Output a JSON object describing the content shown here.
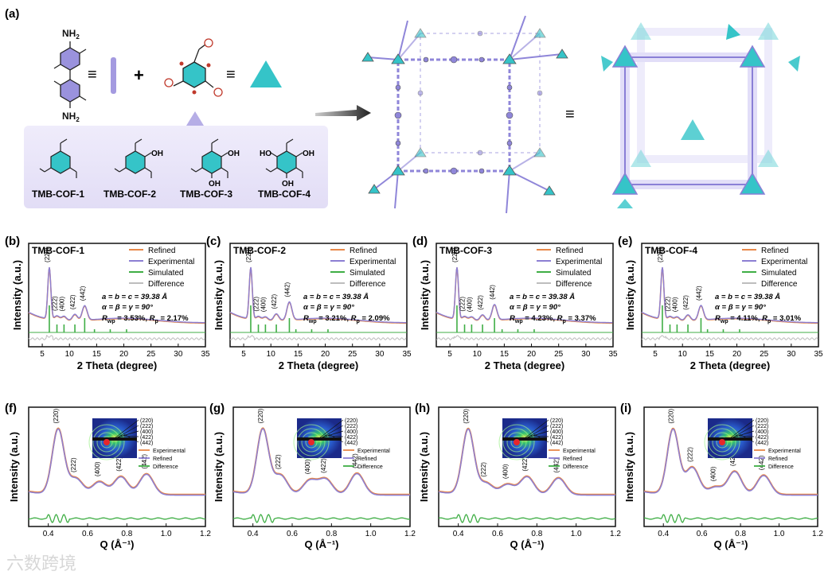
{
  "panel_a": {
    "tag": "(a)",
    "amine_top": "NH",
    "amine_bottom": "NH",
    "amine_sub": "2",
    "equiv_symbol": "≡",
    "plus_symbol": "+",
    "aldehydes": [
      {
        "name": "TMB-COF-1"
      },
      {
        "name": "TMB-COF-2",
        "oh": [
          "OH"
        ]
      },
      {
        "name": "TMB-COF-3",
        "oh": [
          "OH",
          "OH"
        ]
      },
      {
        "name": "TMB-COF-4",
        "oh": [
          "HO",
          "OH",
          "OH"
        ]
      }
    ],
    "colors": {
      "linker": "#a49ae0",
      "node": "#35c4c8",
      "box": "#e9e6f8",
      "frame": "#8a7fd6"
    }
  },
  "pxrd_common": {
    "xlabel": "2 Theta (degree)",
    "ylabel": "Intensity (a.u.)",
    "legend": [
      "Refined",
      "Experimental",
      "Simulated",
      "Difference"
    ],
    "legend_colors": [
      "#e8894a",
      "#8c7fd3",
      "#3fae45",
      "#bdbdbd"
    ],
    "xticks": [
      "5",
      "10",
      "15",
      "20",
      "25",
      "30",
      "35"
    ],
    "cell": "a = b = c = 39.38 Å",
    "angles": "α = β = γ = 90°",
    "rwp_label": "R",
    "rwp_sub": "wp",
    "rp_label": "R",
    "rp_sub": "p"
  },
  "pxrd_panels": [
    {
      "tag": "(b)",
      "title": "TMB-COF-1",
      "rwp": " = 3.53%, ",
      "rp": " = 2.17%"
    },
    {
      "tag": "(c)",
      "title": "TMB-COF-2",
      "rwp": " = 3.21%, ",
      "rp": " = 2.09%"
    },
    {
      "tag": "(d)",
      "title": "TMB-COF-3",
      "rwp": " = 4.23%, ",
      "rp": " = 3.37%"
    },
    {
      "tag": "(e)",
      "title": "TMB-COF-4",
      "rwp": " = 4.11%, ",
      "rp": " = 3.01%"
    }
  ],
  "saxs_common": {
    "xlabel": "Q (Å⁻¹)",
    "ylabel": "Intensity (a.u.)",
    "xticks": [
      "0.4",
      "0.6",
      "0.8",
      "1.0",
      "1.2"
    ],
    "legend": [
      "Experimental",
      "Refined",
      "Difference"
    ],
    "legend_colors": [
      "#e8894a",
      "#8c7fd3",
      "#3fae45"
    ],
    "ring_labels": [
      "(220)",
      "(222)",
      "(400)",
      "(422)",
      "(442)"
    ]
  },
  "saxs_panels": [
    {
      "tag": "(f)"
    },
    {
      "tag": "(g)"
    },
    {
      "tag": "(h)"
    },
    {
      "tag": "(i)"
    }
  ],
  "watermark": "六数跨境",
  "chart_data": [
    {
      "type": "line",
      "title": "TMB-COF-1",
      "xlabel": "2 Theta (degree)",
      "ylabel": "Intensity (a.u.)",
      "xlim": [
        2.5,
        35
      ],
      "peaks": [
        {
          "label": "(220)",
          "x": 6.3
        },
        {
          "label": "(222)",
          "x": 7.7
        },
        {
          "label": "(400)",
          "x": 9.0
        },
        {
          "label": "(422)",
          "x": 11.0
        },
        {
          "label": "(442)",
          "x": 12.8
        }
      ],
      "series": [
        {
          "name": "Refined"
        },
        {
          "name": "Experimental"
        },
        {
          "name": "Simulated"
        },
        {
          "name": "Difference"
        }
      ]
    },
    {
      "type": "line",
      "title": "TMB-COF-2",
      "xlabel": "2 Theta (degree)",
      "ylabel": "Intensity (a.u.)",
      "xlim": [
        2.5,
        35
      ],
      "peaks": [
        {
          "label": "(220)",
          "x": 6.3
        },
        {
          "label": "(222)",
          "x": 7.7
        },
        {
          "label": "(400)",
          "x": 9.0
        },
        {
          "label": "(422)",
          "x": 11.0
        },
        {
          "label": "(442)",
          "x": 13.4
        }
      ],
      "series": [
        {
          "name": "Refined"
        },
        {
          "name": "Experimental"
        },
        {
          "name": "Simulated"
        },
        {
          "name": "Difference"
        }
      ]
    },
    {
      "type": "line",
      "title": "TMB-COF-3",
      "xlabel": "2 Theta (degree)",
      "ylabel": "Intensity (a.u.)",
      "xlim": [
        2.5,
        35
      ],
      "peaks": [
        {
          "label": "(220)",
          "x": 6.3
        },
        {
          "label": "(222)",
          "x": 7.7
        },
        {
          "label": "(400)",
          "x": 9.0
        },
        {
          "label": "(422)",
          "x": 11.0
        },
        {
          "label": "(442)",
          "x": 13.2
        }
      ],
      "series": [
        {
          "name": "Refined"
        },
        {
          "name": "Experimental"
        },
        {
          "name": "Simulated"
        },
        {
          "name": "Difference"
        }
      ]
    },
    {
      "type": "line",
      "title": "TMB-COF-4",
      "xlabel": "2 Theta (degree)",
      "ylabel": "Intensity (a.u.)",
      "xlim": [
        2.5,
        35
      ],
      "peaks": [
        {
          "label": "(220)",
          "x": 6.3
        },
        {
          "label": "(222)",
          "x": 7.7
        },
        {
          "label": "(400)",
          "x": 9.0
        },
        {
          "label": "(422)",
          "x": 11.0
        },
        {
          "label": "(442)",
          "x": 13.4
        }
      ],
      "series": [
        {
          "name": "Refined"
        },
        {
          "name": "Experimental"
        },
        {
          "name": "Simulated"
        },
        {
          "name": "Difference"
        }
      ]
    },
    {
      "type": "line",
      "xlabel": "Q (Å⁻¹)",
      "ylabel": "Intensity (a.u.)",
      "xlim": [
        0.3,
        1.2
      ],
      "peaks": [
        {
          "label": "(220)",
          "x": 0.45
        },
        {
          "label": "(222)",
          "x": 0.54
        },
        {
          "label": "(400)",
          "x": 0.66
        },
        {
          "label": "(422)",
          "x": 0.77
        },
        {
          "label": "(442)",
          "x": 0.9
        }
      ],
      "series": [
        {
          "name": "Experimental"
        },
        {
          "name": "Refined"
        },
        {
          "name": "Difference"
        }
      ]
    },
    {
      "type": "line",
      "xlabel": "Q (Å⁻¹)",
      "ylabel": "Intensity (a.u.)",
      "xlim": [
        0.3,
        1.2
      ],
      "peaks": [
        {
          "label": "(220)",
          "x": 0.45
        },
        {
          "label": "(222)",
          "x": 0.54
        },
        {
          "label": "(400)",
          "x": 0.69
        },
        {
          "label": "(422)",
          "x": 0.77
        },
        {
          "label": "(442)",
          "x": 0.93
        }
      ],
      "series": [
        {
          "name": "Experimental"
        },
        {
          "name": "Refined"
        },
        {
          "name": "Difference"
        }
      ]
    },
    {
      "type": "line",
      "xlabel": "Q (Å⁻¹)",
      "ylabel": "Intensity (a.u.)",
      "xlim": [
        0.3,
        1.2
      ],
      "peaks": [
        {
          "label": "(220)",
          "x": 0.45
        },
        {
          "label": "(222)",
          "x": 0.54
        },
        {
          "label": "(400)",
          "x": 0.65
        },
        {
          "label": "(422)",
          "x": 0.75
        },
        {
          "label": "(442)",
          "x": 0.91
        }
      ],
      "series": [
        {
          "name": "Experimental"
        },
        {
          "name": "Refined"
        },
        {
          "name": "Difference"
        }
      ]
    },
    {
      "type": "line",
      "xlabel": "Q (Å⁻¹)",
      "ylabel": "Intensity (a.u.)",
      "xlim": [
        0.3,
        1.2
      ],
      "peaks": [
        {
          "label": "(220)",
          "x": 0.45
        },
        {
          "label": "(222)",
          "x": 0.55
        },
        {
          "label": "(400)",
          "x": 0.67
        },
        {
          "label": "(422)",
          "x": 0.77
        },
        {
          "label": "(442)",
          "x": 0.92
        }
      ],
      "series": [
        {
          "name": "Experimental"
        },
        {
          "name": "Refined"
        },
        {
          "name": "Difference"
        }
      ]
    }
  ]
}
